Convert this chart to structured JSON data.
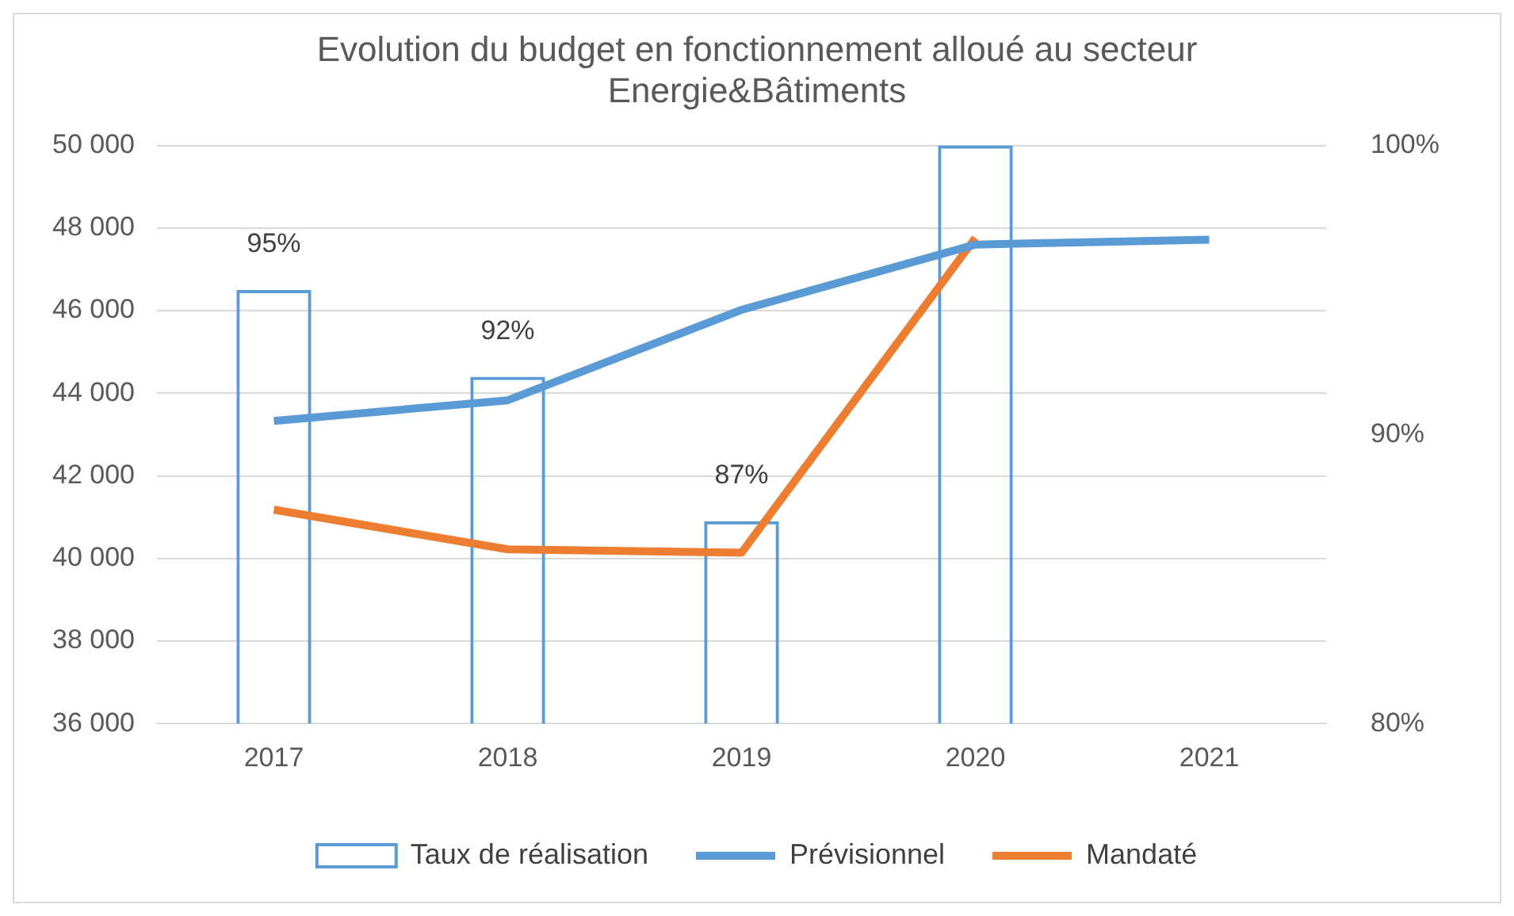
{
  "chart_data": {
    "type": "line",
    "title": "Evolution du budget en fonctionnement alloué au secteur\nEnergie&Bâtiments",
    "categories": [
      "2017",
      "2018",
      "2019",
      "2020",
      "2021"
    ],
    "series": [
      {
        "name": "Taux de réalisation",
        "type": "bar",
        "axis": "y2",
        "color": "#5b9bd5",
        "values": [
          95,
          92,
          87,
          100,
          null
        ],
        "value_labels": [
          "95%",
          "92%",
          "87%",
          null,
          null
        ]
      },
      {
        "name": "Prévisionnel",
        "color": "#5b9bd5",
        "values": [
          43330,
          43830,
          46020,
          47600,
          47720
        ]
      },
      {
        "name": "Mandaté",
        "color": "#ed7d31",
        "values": [
          41180,
          40220,
          40140,
          47760,
          null
        ]
      }
    ],
    "ylim": [
      36000,
      50000
    ],
    "yticks": [
      {
        "value": 36000,
        "label": "36 000"
      },
      {
        "value": 38000,
        "label": "38 000"
      },
      {
        "value": 40000,
        "label": "40 000"
      },
      {
        "value": 42000,
        "label": "42 000"
      },
      {
        "value": 44000,
        "label": "44 000"
      },
      {
        "value": 46000,
        "label": "46 000"
      },
      {
        "value": 48000,
        "label": "48 000"
      },
      {
        "value": 50000,
        "label": "50 000"
      }
    ],
    "y2lim": [
      80,
      100
    ],
    "y2ticks": [
      {
        "value": 80,
        "label": "80%"
      },
      {
        "value": 90,
        "label": "90%"
      },
      {
        "value": 100,
        "label": "100%"
      }
    ],
    "grid": "y",
    "legend": "bottom",
    "marker": "none",
    "line_style": "solid"
  }
}
